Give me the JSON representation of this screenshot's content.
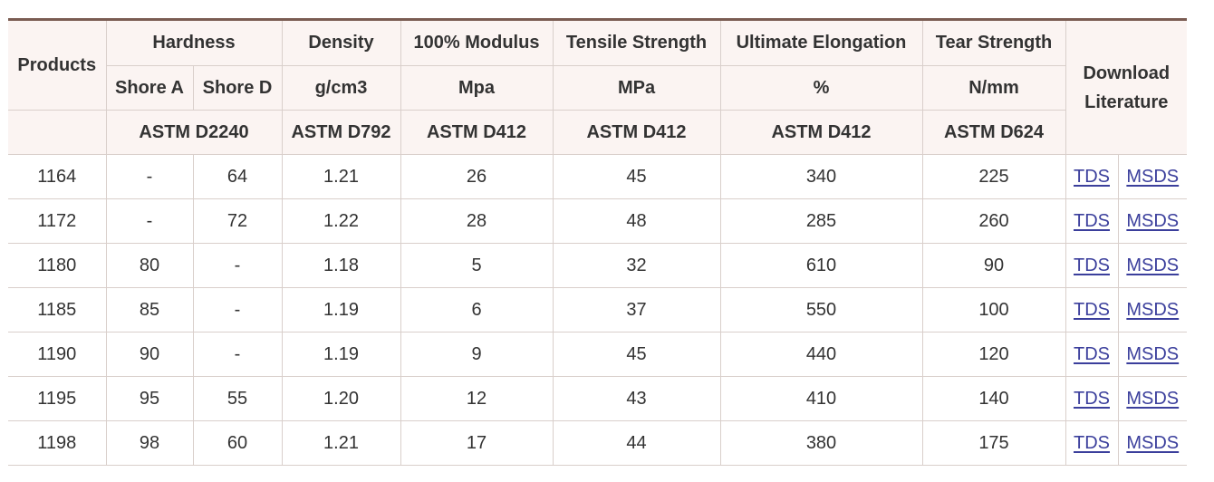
{
  "table": {
    "header": {
      "products": "Products",
      "hardness": "Hardness",
      "shore_a": "Shore A",
      "shore_d": "Shore D",
      "density": "Density",
      "density_unit": "g/cm3",
      "modulus": "100% Modulus",
      "modulus_unit": "Mpa",
      "tensile": "Tensile Strength",
      "tensile_unit": "MPa",
      "elongation": "Ultimate Elongation",
      "elongation_unit": "%",
      "tear": "Tear Strength",
      "tear_unit": "N/mm",
      "download_line1": "Download",
      "download_line2": "Literature",
      "std_hardness": "ASTM D2240",
      "std_density": "ASTM D792",
      "std_modulus": "ASTM D412",
      "std_tensile": "ASTM D412",
      "std_elongation": "ASTM D412",
      "std_tear": "ASTM D624"
    },
    "rows": [
      {
        "product": "1164",
        "shore_a": "-",
        "shore_d": "64",
        "density": "1.21",
        "modulus": "26",
        "tensile": "45",
        "elongation": "340",
        "tear": "225",
        "tds": "TDS",
        "msds": "MSDS"
      },
      {
        "product": "1172",
        "shore_a": "-",
        "shore_d": "72",
        "density": "1.22",
        "modulus": "28",
        "tensile": "48",
        "elongation": "285",
        "tear": "260",
        "tds": "TDS",
        "msds": "MSDS"
      },
      {
        "product": "1180",
        "shore_a": "80",
        "shore_d": "-",
        "density": "1.18",
        "modulus": "5",
        "tensile": "32",
        "elongation": "610",
        "tear": "90",
        "tds": "TDS",
        "msds": "MSDS"
      },
      {
        "product": "1185",
        "shore_a": "85",
        "shore_d": "-",
        "density": "1.19",
        "modulus": "6",
        "tensile": "37",
        "elongation": "550",
        "tear": "100",
        "tds": "TDS",
        "msds": "MSDS"
      },
      {
        "product": "1190",
        "shore_a": "90",
        "shore_d": "-",
        "density": "1.19",
        "modulus": "9",
        "tensile": "45",
        "elongation": "440",
        "tear": "120",
        "tds": "TDS",
        "msds": "MSDS"
      },
      {
        "product": "1195",
        "shore_a": "95",
        "shore_d": "55",
        "density": "1.20",
        "modulus": "12",
        "tensile": "43",
        "elongation": "410",
        "tear": "140",
        "tds": "TDS",
        "msds": "MSDS"
      },
      {
        "product": "1198",
        "shore_a": "98",
        "shore_d": "60",
        "density": "1.21",
        "modulus": "17",
        "tensile": "44",
        "elongation": "380",
        "tear": "175",
        "tds": "TDS",
        "msds": "MSDS"
      }
    ]
  },
  "colors": {
    "accent_border": "#7a5c52",
    "header_bg": "#fbf4f2",
    "link": "#3b3f9c"
  }
}
